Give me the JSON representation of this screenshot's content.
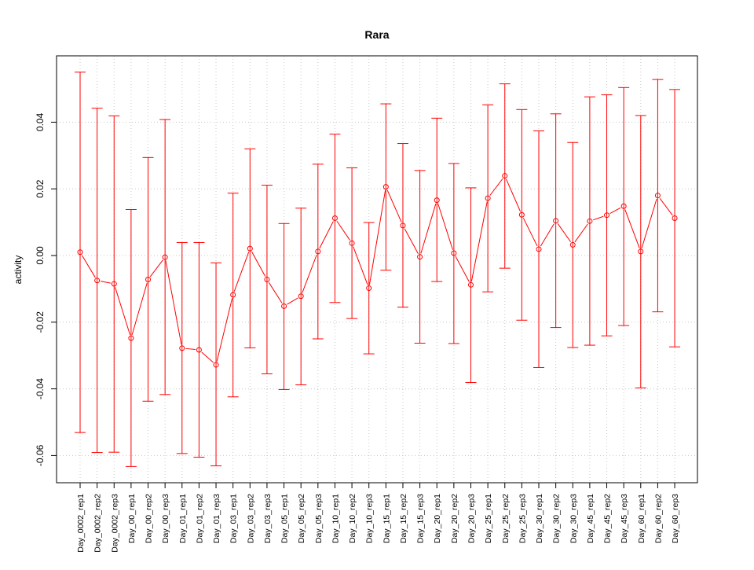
{
  "chart_data": {
    "type": "line",
    "title": "Rara",
    "xlabel": "",
    "ylabel": "activity",
    "ylim": [
      -0.068,
      0.06
    ],
    "y_ticks": [
      -0.06,
      -0.04,
      -0.02,
      0.0,
      0.02,
      0.04
    ],
    "y_tick_labels": [
      "-0.06",
      "-0.04",
      "-0.02",
      "0.00",
      "0.02",
      "0.04"
    ],
    "grid": true,
    "grid_style": "dotted",
    "color": "#ff0000",
    "series": [
      {
        "categories": [
          "Day_0002_rep1",
          "Day_0002_rep2",
          "Day_0002_rep3",
          "Day_00_rep1",
          "Day_00_rep2",
          "Day_00_rep3",
          "Day_01_rep1",
          "Day_01_rep2",
          "Day_01_rep3",
          "Day_03_rep1",
          "Day_03_rep2",
          "Day_03_rep3",
          "Day_05_rep1",
          "Day_05_rep2",
          "Day_05_rep3",
          "Day_10_rep1",
          "Day_10_rep2",
          "Day_10_rep3",
          "Day_15_rep1",
          "Day_15_rep2",
          "Day_15_rep3",
          "Day_20_rep1",
          "Day_20_rep2",
          "Day_20_rep3",
          "Day_25_rep1",
          "Day_25_rep2",
          "Day_25_rep3",
          "Day_30_rep1",
          "Day_30_rep2",
          "Day_30_rep3",
          "Day_45_rep1",
          "Day_45_rep2",
          "Day_45_rep3",
          "Day_60_rep1",
          "Day_60_rep2",
          "Day_60_rep3"
        ],
        "values": [
          0.001,
          -0.0075,
          -0.0085,
          -0.0248,
          -0.0072,
          -0.0005,
          -0.0278,
          -0.0283,
          -0.0328,
          -0.0118,
          0.0021,
          -0.0072,
          -0.0152,
          -0.0122,
          0.0012,
          0.0112,
          0.0037,
          -0.0098,
          0.0206,
          0.009,
          -0.0004,
          0.0166,
          0.0007,
          -0.0088,
          0.0172,
          0.0239,
          0.0122,
          0.0019,
          0.0104,
          0.0032,
          0.0103,
          0.0121,
          0.0148,
          0.0012,
          0.018,
          0.0112
        ],
        "upper": [
          0.055,
          0.0442,
          0.0419,
          0.0138,
          0.0294,
          0.0408,
          0.0039,
          0.0039,
          -0.0022,
          0.0187,
          0.032,
          0.0211,
          0.0096,
          0.0142,
          0.0274,
          0.0364,
          0.0263,
          0.0099,
          0.0455,
          0.0336,
          0.0255,
          0.0412,
          0.0276,
          0.0203,
          0.0452,
          0.0515,
          0.0438,
          0.0374,
          0.0425,
          0.0339,
          0.0476,
          0.0482,
          0.0504,
          0.042,
          0.0528,
          0.0498
        ],
        "lower": [
          -0.0531,
          -0.0591,
          -0.059,
          -0.0633,
          -0.0437,
          -0.0417,
          -0.0594,
          -0.0605,
          -0.0631,
          -0.0424,
          -0.0277,
          -0.0355,
          -0.0402,
          -0.0388,
          -0.025,
          -0.0141,
          -0.0189,
          -0.0295,
          -0.0044,
          -0.0155,
          -0.0263,
          -0.0078,
          -0.0264,
          -0.0381,
          -0.0109,
          -0.0038,
          -0.0194,
          -0.0336,
          -0.0216,
          -0.0276,
          -0.0269,
          -0.0241,
          -0.021,
          -0.0397,
          -0.0169,
          -0.0274
        ]
      }
    ]
  }
}
